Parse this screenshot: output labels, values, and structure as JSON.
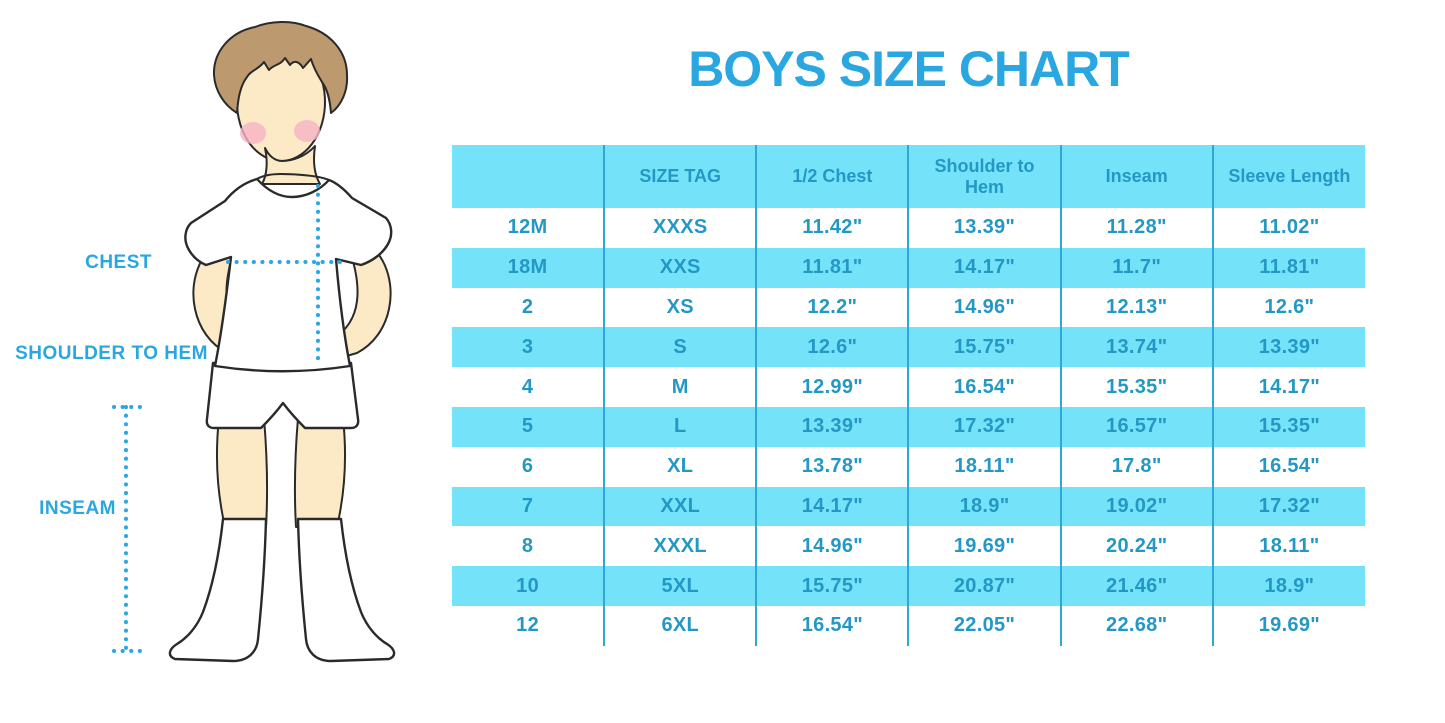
{
  "title": "BOYS SIZE CHART",
  "figure_labels": {
    "chest": "CHEST",
    "shoulder_to_hem": "SHOULDER TO HEM",
    "inseam": "INSEAM"
  },
  "chart_data": {
    "type": "table",
    "title": "BOYS SIZE CHART",
    "columns": [
      "",
      "SIZE TAG",
      "1/2 Chest",
      "Shoulder to Hem",
      "Inseam",
      "Sleeve Length"
    ],
    "rows": [
      [
        "12M",
        "XXXS",
        "11.42\"",
        "13.39\"",
        "11.28\"",
        "11.02\""
      ],
      [
        "18M",
        "XXS",
        "11.81\"",
        "14.17\"",
        "11.7\"",
        "11.81\""
      ],
      [
        "2",
        "XS",
        "12.2\"",
        "14.96\"",
        "12.13\"",
        "12.6\""
      ],
      [
        "3",
        "S",
        "12.6\"",
        "15.75\"",
        "13.74\"",
        "13.39\""
      ],
      [
        "4",
        "M",
        "12.99\"",
        "16.54\"",
        "15.35\"",
        "14.17\""
      ],
      [
        "5",
        "L",
        "13.39\"",
        "17.32\"",
        "16.57\"",
        "15.35\""
      ],
      [
        "6",
        "XL",
        "13.78\"",
        "18.11\"",
        "17.8\"",
        "16.54\""
      ],
      [
        "7",
        "XXL",
        "14.17\"",
        "18.9\"",
        "19.02\"",
        "17.32\""
      ],
      [
        "8",
        "XXXL",
        "14.96\"",
        "19.69\"",
        "20.24\"",
        "18.11\""
      ],
      [
        "10",
        "5XL",
        "15.75\"",
        "20.87\"",
        "21.46\"",
        "18.9\""
      ],
      [
        "12",
        "6XL",
        "16.54\"",
        "22.05\"",
        "22.68\"",
        "19.69\""
      ]
    ],
    "layout": {
      "striped_rows": true,
      "header_background": "cyan",
      "alternating_from": "white"
    }
  },
  "colors": {
    "accent_blue": "#2AA7E1",
    "table_text": "#2498C4",
    "row_highlight_cyan": "#74E3FA",
    "column_divider": "#2FA6D4",
    "figure_skin": "#FCE9C6",
    "figure_hair": "#BC996E",
    "figure_cheek": "#F6B3C5"
  }
}
